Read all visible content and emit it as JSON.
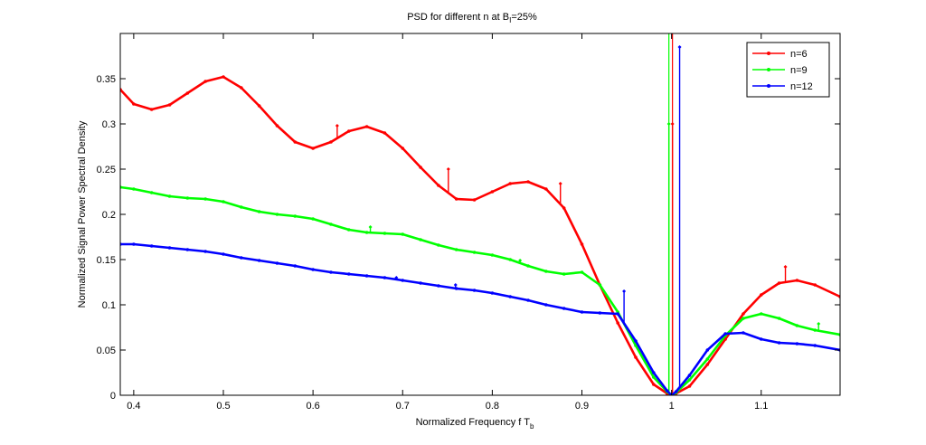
{
  "chart_data": {
    "type": "line",
    "title": "PSD for different n at B",
    "title_sub": "I",
    "title_tail": "=25%",
    "xlabel": "Normalized Frequency f T",
    "xlabel_sub": "b",
    "ylabel": "Normalized Signal Power Spectral Density",
    "xlim": [
      0.385,
      1.188
    ],
    "ylim": [
      0,
      0.4
    ],
    "xticks": [
      0.4,
      0.5,
      0.6,
      0.7,
      0.8,
      0.9,
      1,
      1.1
    ],
    "xtick_labels": [
      "0.4",
      "0.5",
      "0.6",
      "0.7",
      "0.8",
      "0.9",
      "1",
      "1.1"
    ],
    "yticks": [
      0,
      0.05,
      0.1,
      0.15,
      0.2,
      0.25,
      0.3,
      0.35
    ],
    "ytick_labels": [
      "0",
      "0.05",
      "0.1",
      "0.15",
      "0.2",
      "0.25",
      "0.3",
      "0.35"
    ],
    "grid": false,
    "legend_position": "top-right",
    "series": [
      {
        "name": "n=6",
        "color": "#ff0000",
        "x": [
          0.385,
          0.4,
          0.42,
          0.44,
          0.46,
          0.48,
          0.5,
          0.52,
          0.54,
          0.56,
          0.58,
          0.6,
          0.62,
          0.64,
          0.66,
          0.68,
          0.7,
          0.72,
          0.74,
          0.76,
          0.78,
          0.8,
          0.82,
          0.84,
          0.86,
          0.88,
          0.9,
          0.92,
          0.94,
          0.96,
          0.98,
          0.995,
          1.0,
          1.005,
          1.02,
          1.04,
          1.06,
          1.08,
          1.1,
          1.12,
          1.14,
          1.16,
          1.188
        ],
        "y": [
          0.338,
          0.322,
          0.316,
          0.321,
          0.334,
          0.347,
          0.352,
          0.34,
          0.32,
          0.298,
          0.28,
          0.273,
          0.28,
          0.292,
          0.297,
          0.29,
          0.273,
          0.252,
          0.232,
          0.217,
          0.216,
          0.225,
          0.234,
          0.236,
          0.228,
          0.207,
          0.167,
          0.122,
          0.08,
          0.042,
          0.012,
          0.002,
          0.0,
          0.002,
          0.01,
          0.034,
          0.062,
          0.09,
          0.111,
          0.124,
          0.127,
          0.122,
          0.109
        ],
        "spikes": [
          {
            "x": 0.627,
            "y": 0.298
          },
          {
            "x": 0.751,
            "y": 0.25
          },
          {
            "x": 0.876,
            "y": 0.234
          },
          {
            "x": 1.001,
            "y": 0.3
          },
          {
            "x": 1.127,
            "y": 0.142
          }
        ]
      },
      {
        "name": "n=9",
        "color": "#00ff00",
        "x": [
          0.385,
          0.4,
          0.42,
          0.44,
          0.46,
          0.48,
          0.5,
          0.52,
          0.54,
          0.56,
          0.58,
          0.6,
          0.62,
          0.64,
          0.66,
          0.68,
          0.7,
          0.72,
          0.74,
          0.76,
          0.78,
          0.8,
          0.82,
          0.84,
          0.86,
          0.88,
          0.9,
          0.92,
          0.94,
          0.96,
          0.98,
          0.995,
          1.0,
          1.005,
          1.02,
          1.04,
          1.06,
          1.08,
          1.1,
          1.12,
          1.14,
          1.16,
          1.188
        ],
        "y": [
          0.23,
          0.228,
          0.224,
          0.22,
          0.218,
          0.217,
          0.214,
          0.208,
          0.203,
          0.2,
          0.198,
          0.195,
          0.189,
          0.183,
          0.18,
          0.179,
          0.178,
          0.172,
          0.166,
          0.161,
          0.158,
          0.155,
          0.15,
          0.143,
          0.137,
          0.134,
          0.136,
          0.122,
          0.092,
          0.055,
          0.02,
          0.004,
          0.0,
          0.003,
          0.017,
          0.04,
          0.066,
          0.085,
          0.09,
          0.085,
          0.077,
          0.072,
          0.067
        ],
        "spikes": [
          {
            "x": 0.664,
            "y": 0.186
          },
          {
            "x": 0.831,
            "y": 0.149
          },
          {
            "x": 0.997,
            "y": 0.3
          },
          {
            "x": 1.164,
            "y": 0.079
          }
        ]
      },
      {
        "name": "n=12",
        "color": "#0000ff",
        "x": [
          0.385,
          0.4,
          0.42,
          0.44,
          0.46,
          0.48,
          0.5,
          0.52,
          0.54,
          0.56,
          0.58,
          0.6,
          0.62,
          0.64,
          0.66,
          0.68,
          0.7,
          0.72,
          0.74,
          0.76,
          0.78,
          0.8,
          0.82,
          0.84,
          0.86,
          0.88,
          0.9,
          0.92,
          0.94,
          0.96,
          0.98,
          0.995,
          1.0,
          1.005,
          1.02,
          1.04,
          1.06,
          1.08,
          1.1,
          1.12,
          1.14,
          1.16,
          1.188
        ],
        "y": [
          0.167,
          0.167,
          0.165,
          0.163,
          0.161,
          0.159,
          0.156,
          0.152,
          0.149,
          0.146,
          0.143,
          0.139,
          0.136,
          0.134,
          0.132,
          0.13,
          0.127,
          0.124,
          0.121,
          0.118,
          0.116,
          0.113,
          0.109,
          0.105,
          0.1,
          0.096,
          0.092,
          0.091,
          0.09,
          0.06,
          0.025,
          0.005,
          0.0,
          0.004,
          0.022,
          0.05,
          0.068,
          0.069,
          0.062,
          0.058,
          0.057,
          0.055,
          0.05
        ],
        "spikes": [
          {
            "x": 0.693,
            "y": 0.13
          },
          {
            "x": 0.759,
            "y": 0.122
          },
          {
            "x": 0.947,
            "y": 0.115
          },
          {
            "x": 1.009,
            "y": 0.385
          }
        ]
      }
    ],
    "vertical_lines": [
      {
        "x": 0.997,
        "color": "#00ff00",
        "y": 0.4
      },
      {
        "x": 1.001,
        "color": "#ff0000",
        "y": 0.4
      }
    ]
  }
}
